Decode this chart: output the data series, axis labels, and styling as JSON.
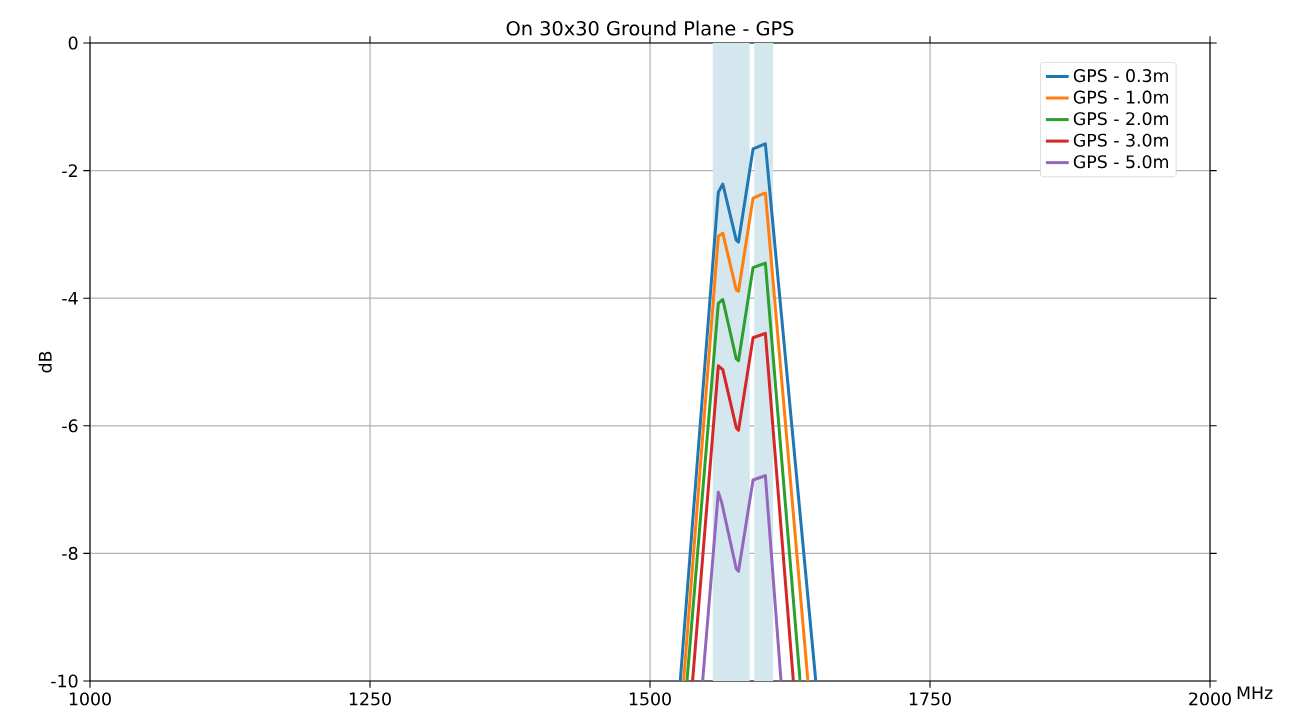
{
  "chart_data": {
    "type": "line",
    "title": "On 30x30 Ground Plane   - GPS",
    "xlabel": "MHz",
    "ylabel": "dB",
    "xlim": [
      1000,
      2000
    ],
    "ylim": [
      -10,
      0
    ],
    "xticks": [
      1000,
      1250,
      1500,
      1750,
      2000
    ],
    "yticks": [
      -10,
      -8,
      -6,
      -4,
      -2,
      0
    ],
    "grid": true,
    "legend": "top right",
    "bands": [
      {
        "axis": "x",
        "from": 1556,
        "to": 1589,
        "color": "#d4e7ef"
      },
      {
        "axis": "x",
        "from": 1593,
        "to": 1610,
        "color": "#d4e7ef"
      }
    ],
    "series": [
      {
        "name": "GPS - 0.3m",
        "color": "#1f77b4",
        "x": [
          1527,
          1561,
          1565,
          1577,
          1579,
          1592,
          1603,
          1648
        ],
        "values": [
          -10,
          -2.34,
          -2.21,
          -3.09,
          -3.12,
          -1.66,
          -1.58,
          -10
        ]
      },
      {
        "name": "GPS - 1.0m",
        "color": "#ff7f0e",
        "x": [
          1530,
          1561,
          1565,
          1577,
          1579,
          1592,
          1603,
          1641
        ],
        "values": [
          -10,
          -3.03,
          -2.98,
          -3.87,
          -3.89,
          -2.43,
          -2.35,
          -10
        ]
      },
      {
        "name": "GPS - 2.0m",
        "color": "#2ca02c",
        "x": [
          1533,
          1561,
          1565,
          1577,
          1579,
          1592,
          1603,
          1634
        ],
        "values": [
          -10,
          -4.08,
          -4.02,
          -4.95,
          -4.98,
          -3.52,
          -3.45,
          -10
        ]
      },
      {
        "name": "GPS - 3.0m",
        "color": "#d62728",
        "x": [
          1538,
          1561,
          1565,
          1577,
          1579,
          1592,
          1603,
          1628
        ],
        "values": [
          -10,
          -5.06,
          -5.12,
          -6.03,
          -6.07,
          -4.62,
          -4.55,
          -10
        ]
      },
      {
        "name": "GPS - 5.0m",
        "color": "#9467bd",
        "x": [
          1547,
          1561,
          1564,
          1577,
          1579,
          1592,
          1603,
          1617
        ],
        "values": [
          -10,
          -7.04,
          -7.2,
          -8.24,
          -8.28,
          -6.85,
          -6.78,
          -10
        ]
      }
    ]
  }
}
